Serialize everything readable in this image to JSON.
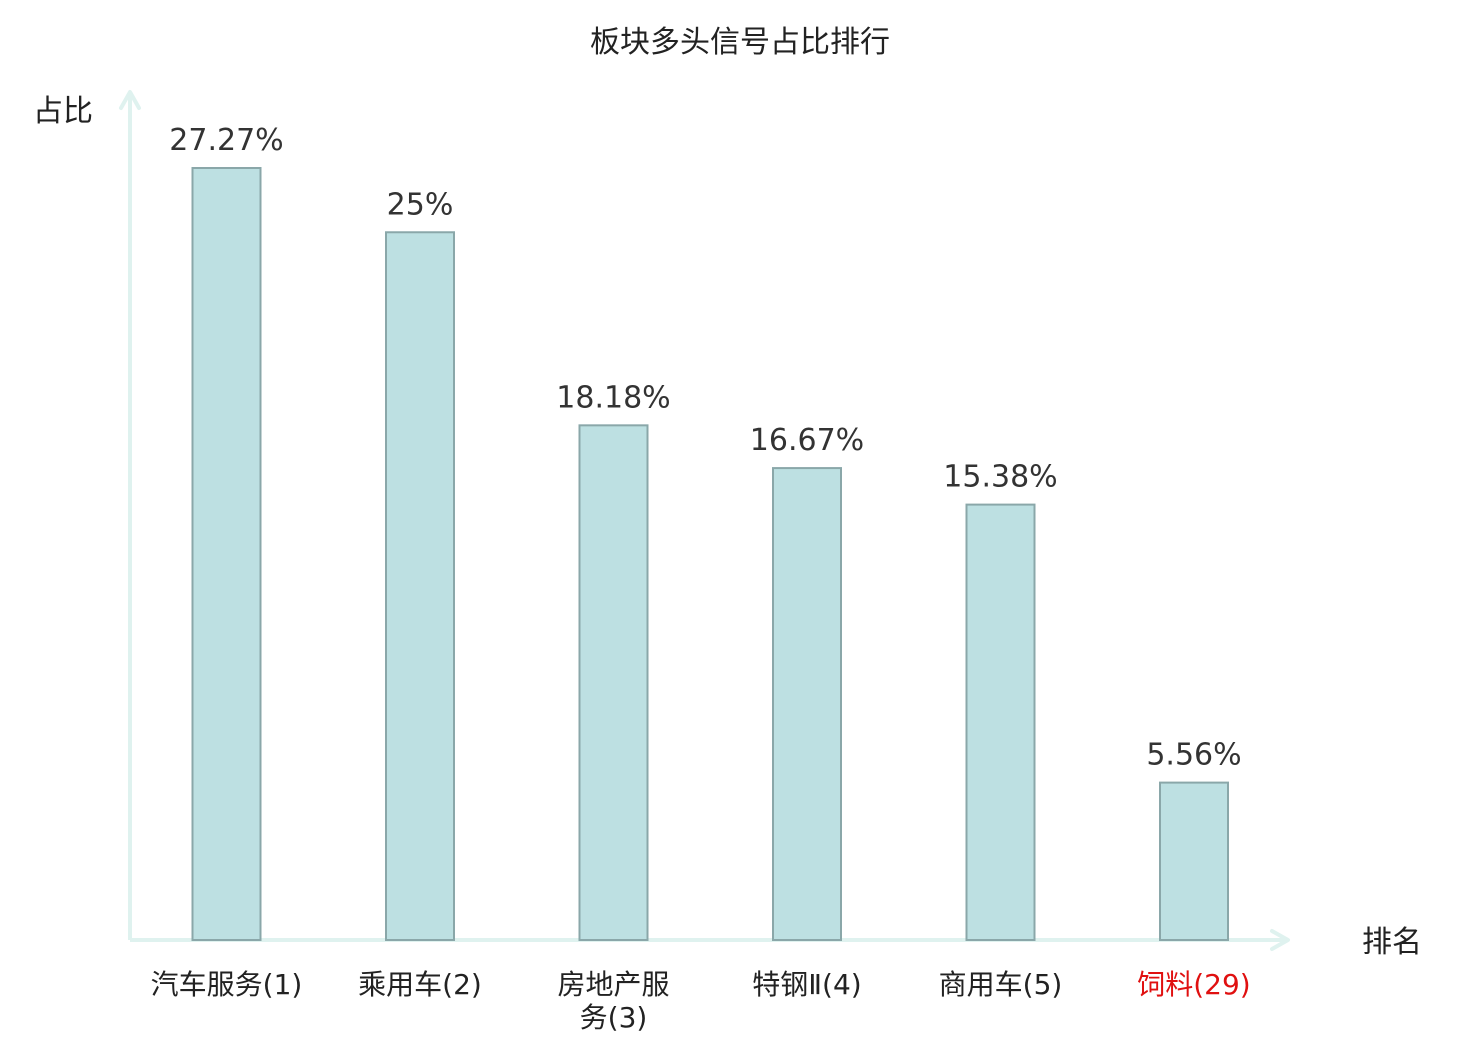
{
  "chart_data": {
    "type": "bar",
    "title": "板块多头信号占比排行",
    "xlabel": "排名",
    "ylabel": "占比",
    "categories": [
      [
        "汽车服务(1)"
      ],
      [
        "乘用车(2)"
      ],
      [
        "房地产服",
        "务(3)"
      ],
      [
        "特钢Ⅱ(4)"
      ],
      [
        "商用车(5)"
      ],
      [
        "饲料(29)"
      ]
    ],
    "values": [
      27.27,
      25,
      18.18,
      16.67,
      15.38,
      5.56
    ],
    "value_labels": [
      "27.27%",
      "25%",
      "18.18%",
      "16.67%",
      "15.38%",
      "5.56%"
    ],
    "highlight_index": 5,
    "ylim": [
      0,
      27.27
    ],
    "grid": false,
    "legend": "none"
  },
  "colors": {
    "bar_fill": "#bde0e2",
    "bar_stroke": "#8aa7a9",
    "axis": "#dff2ef",
    "text": "#222222",
    "value_text": "#333333",
    "highlight": "#e01010"
  }
}
